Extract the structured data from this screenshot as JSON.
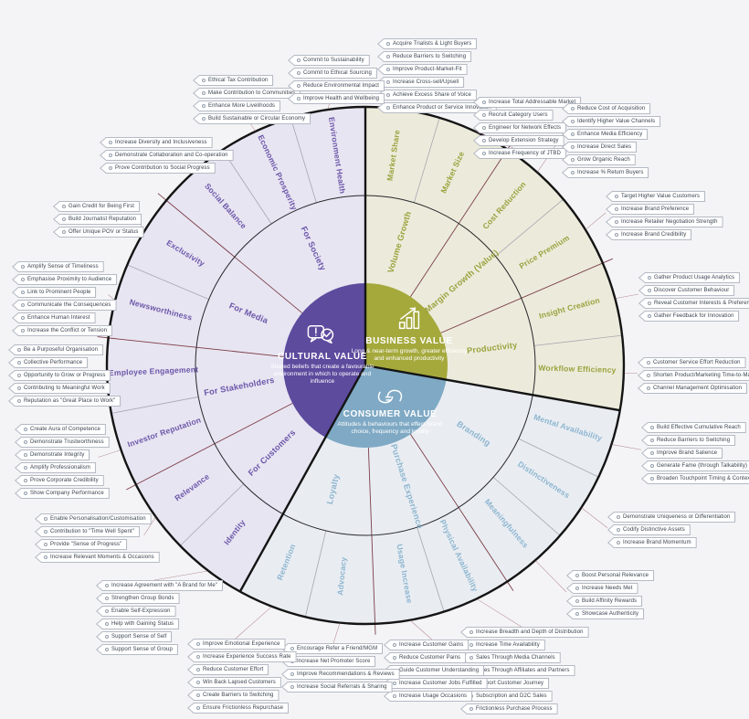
{
  "background": "#f4f4f6",
  "wheel": {
    "line_colors": {
      "sector": "#141414",
      "group": "#7c3e48",
      "wedge": "#a6a6b0",
      "rim": "#141414",
      "leader": "#8c4a54"
    },
    "callout_style": {
      "border": "#b5bac4",
      "text": "#39434f",
      "bullet": "#95a0ab"
    },
    "sections": [
      {
        "id": "business",
        "title": "BUSINESS VALUE",
        "description": "Long & near-term growth, greater efficiency and enhanced productivity",
        "icon": "growth-chart-icon",
        "center_color": "#a5a93c",
        "ring_color": "#ecebdb",
        "label_color": "#9ba23e",
        "angle_start": 0,
        "angle_end": 100,
        "groups": [
          {
            "label": "Volume Growth",
            "wedges": [
              {
                "label": "Market Share",
                "callouts": [
                  "Acquire Trialists & Light Buyers",
                  "Reduce Barriers to Switching",
                  "Improve Product-Market-Fit",
                  "Increase Cross-sell/Upsell",
                  "Achieve Excess Share of Voice",
                  "Enhance Product or Service Innovation"
                ]
              },
              {
                "label": "Market Size",
                "callouts": [
                  "Increase Total Addressable Market",
                  "Recruit Category Users",
                  "Engineer for Network Effects",
                  "Develop Extension Strategy",
                  "Increase Frequency of JTBD"
                ]
              }
            ]
          },
          {
            "label": "Margin Growth (Value)",
            "wedges": [
              {
                "label": "Cost Reduction",
                "callouts": [
                  "Reduce Cost of Acquisition",
                  "Identify Higher Value Channels",
                  "Enhance Media Efficiency",
                  "Increase Direct Sales",
                  "Grow Organic Reach",
                  "Increase % Return Buyers"
                ]
              },
              {
                "label": "Price Premium",
                "callouts": [
                  "Target Higher Value Customers",
                  "Increase Brand Preference",
                  "Increase Retailer Negotiation Strength",
                  "Increase Brand Credibility"
                ]
              }
            ]
          },
          {
            "label": "Productivity",
            "wedges": [
              {
                "label": "Insight Creation",
                "callouts": [
                  "Gather Product Usage Analytics",
                  "Discover Customer Behaviour",
                  "Reveal Customer Interests & Preferences",
                  "Gather Feedback for Innovation"
                ]
              },
              {
                "label": "Workflow Efficiency",
                "callouts": [
                  "Customer Service Effort Reduction",
                  "Shorten Product/Marketing Time-to-Market",
                  "Channel Management Optimisation"
                ]
              }
            ]
          }
        ]
      },
      {
        "id": "consumer",
        "title": "CONSUMER VALUE",
        "description": "Attitudes & behaviours that effect brand choice, frequency and loyalty",
        "icon": "handshake-icon",
        "center_color": "#7fa9c4",
        "ring_color": "#e9edf2",
        "label_color": "#8db5cf",
        "angle_start": 100,
        "angle_end": 209,
        "groups": [
          {
            "label": "Branding",
            "wedges": [
              {
                "label": "Mental Availability",
                "callouts": [
                  "Build Effective Cumulative Reach",
                  "Reduce Barriers to Switching",
                  "Improve Brand Salience",
                  "Generate Fame (through Talkability)",
                  "Broaden Touchpoint Timing & Context"
                ]
              },
              {
                "label": "Distinctiveness",
                "callouts": [
                  "Demonstrate Uniqueness or Differentiation",
                  "Codify Distinctive Assets",
                  "Increase Brand Momentum"
                ]
              },
              {
                "label": "Meaningfulness",
                "callouts": [
                  "Boost Personal Relevance",
                  "Increase Needs Met",
                  "Build Affinity Rewards",
                  "Showcase Authenticity"
                ]
              }
            ]
          },
          {
            "label": "Purchase Experience",
            "wedges": [
              {
                "label": "Physical Availability",
                "callouts": [
                  "Increase Breadth and Depth of Distribution",
                  "Increase Time Availability",
                  "Sales Through Media Channels",
                  "Sales Through Affiliates and Partners",
                  "Support Customer Journey",
                  "Subscription and D2C Sales",
                  "Frictionless Purchase Process"
                ]
              },
              {
                "label": "Usage Increase",
                "callouts": [
                  "Increase Customer Gains",
                  "Reduce Customer Pains",
                  "Guide Customer Understanding",
                  "Increase Customer Jobs Fulfilled",
                  "Increase Usage Occasions"
                ]
              }
            ]
          },
          {
            "label": "Loyalty",
            "wedges": [
              {
                "label": "Advocacy",
                "callouts": [
                  "Encourage Refer a Friend/MGM",
                  "Increase Net Promoter Score",
                  "Improve Recommendations & Reviews",
                  "Increase Social Referrals & Sharing"
                ]
              },
              {
                "label": "Retention",
                "callouts": [
                  "Improve Emotional Experience",
                  "Increase Experience Success Rate",
                  "Reduce Customer Effort",
                  "Win Back Lapsed Customers",
                  "Create Barriers to Switching",
                  "Ensure Frictionless Repurchase"
                ]
              }
            ]
          }
        ]
      },
      {
        "id": "cultural",
        "title": "CULTURAL VALUE",
        "description": "Shared beliefs that create a favourable environment in which to operate and influence",
        "icon": "chat-alert-icon",
        "center_color": "#5d4b9e",
        "ring_color": "#e8e5f2",
        "label_color": "#6b57a9",
        "angle_start": 209,
        "angle_end": 360,
        "groups": [
          {
            "label": "For Customers",
            "wedges": [
              {
                "label": "Identity",
                "callouts": [
                  "Increase Agreement with \"A Brand for Me\"",
                  "Strengthen Group Bonds",
                  "Enable Self-Expression",
                  "Help with Gaining Status",
                  "Support Sense of Self",
                  "Support Sense of Group"
                ]
              },
              {
                "label": "Relevance",
                "callouts": [
                  "Enable Personalisation/Customisation",
                  "Contribution to \"Time Well Spent\"",
                  "Provide \"Sense of Progress\"",
                  "Increase Relevant Moments & Occasions"
                ]
              }
            ]
          },
          {
            "label": "For Stakeholders",
            "wedges": [
              {
                "label": "Investor Reputation",
                "callouts": [
                  "Create Aura of Competence",
                  "Demonstrate Trustworthiness",
                  "Demonstrate Integrity",
                  "Amplify Professionalism",
                  "Prove Corporate Credibility",
                  "Show Company Performance"
                ]
              },
              {
                "label": "Employee Engagement",
                "callouts": [
                  "Be a Purposeful Organisation",
                  "Collective Performance",
                  "Opportunity to Grow or Progress",
                  "Contributing to Meaningful Work",
                  "Reputation as \"Great Place to Work\""
                ]
              }
            ]
          },
          {
            "label": "For Media",
            "wedges": [
              {
                "label": "Newsworthiness",
                "callouts": [
                  "Amplify Sense of Timeliness",
                  "Emphasise Proximity to Audience",
                  "Link to Prominent People",
                  "Communicate the Consequences",
                  "Enhance Human Interest",
                  "Increase the Conflict or Tension"
                ]
              },
              {
                "label": "Exclusivity",
                "callouts": [
                  "Gain Credit for Being First",
                  "Build Journalist Reputation",
                  "Offer Unique POV or Status"
                ]
              }
            ]
          },
          {
            "label": "For Society",
            "wedges": [
              {
                "label": "Social Balance",
                "callouts": [
                  "Increase Diversity and Inclusiveness",
                  "Demonstrate Collaboration and Co-operation",
                  "Prove Contribution to Social Progress"
                ]
              },
              {
                "label": "Economic Prosperity",
                "callouts": [
                  "Ethical Tax Contribution",
                  "Make Contribution to Communities",
                  "Enhance More Livelihoods",
                  "Build Sustainable or Circular Economy"
                ]
              },
              {
                "label": "Environment Health",
                "callouts": [
                  "Commit to Sustainability",
                  "Commit to Ethical Sourcing",
                  "Reduce Environmental Impact",
                  "Improve Health and Wellbeing"
                ]
              }
            ]
          }
        ]
      }
    ]
  }
}
